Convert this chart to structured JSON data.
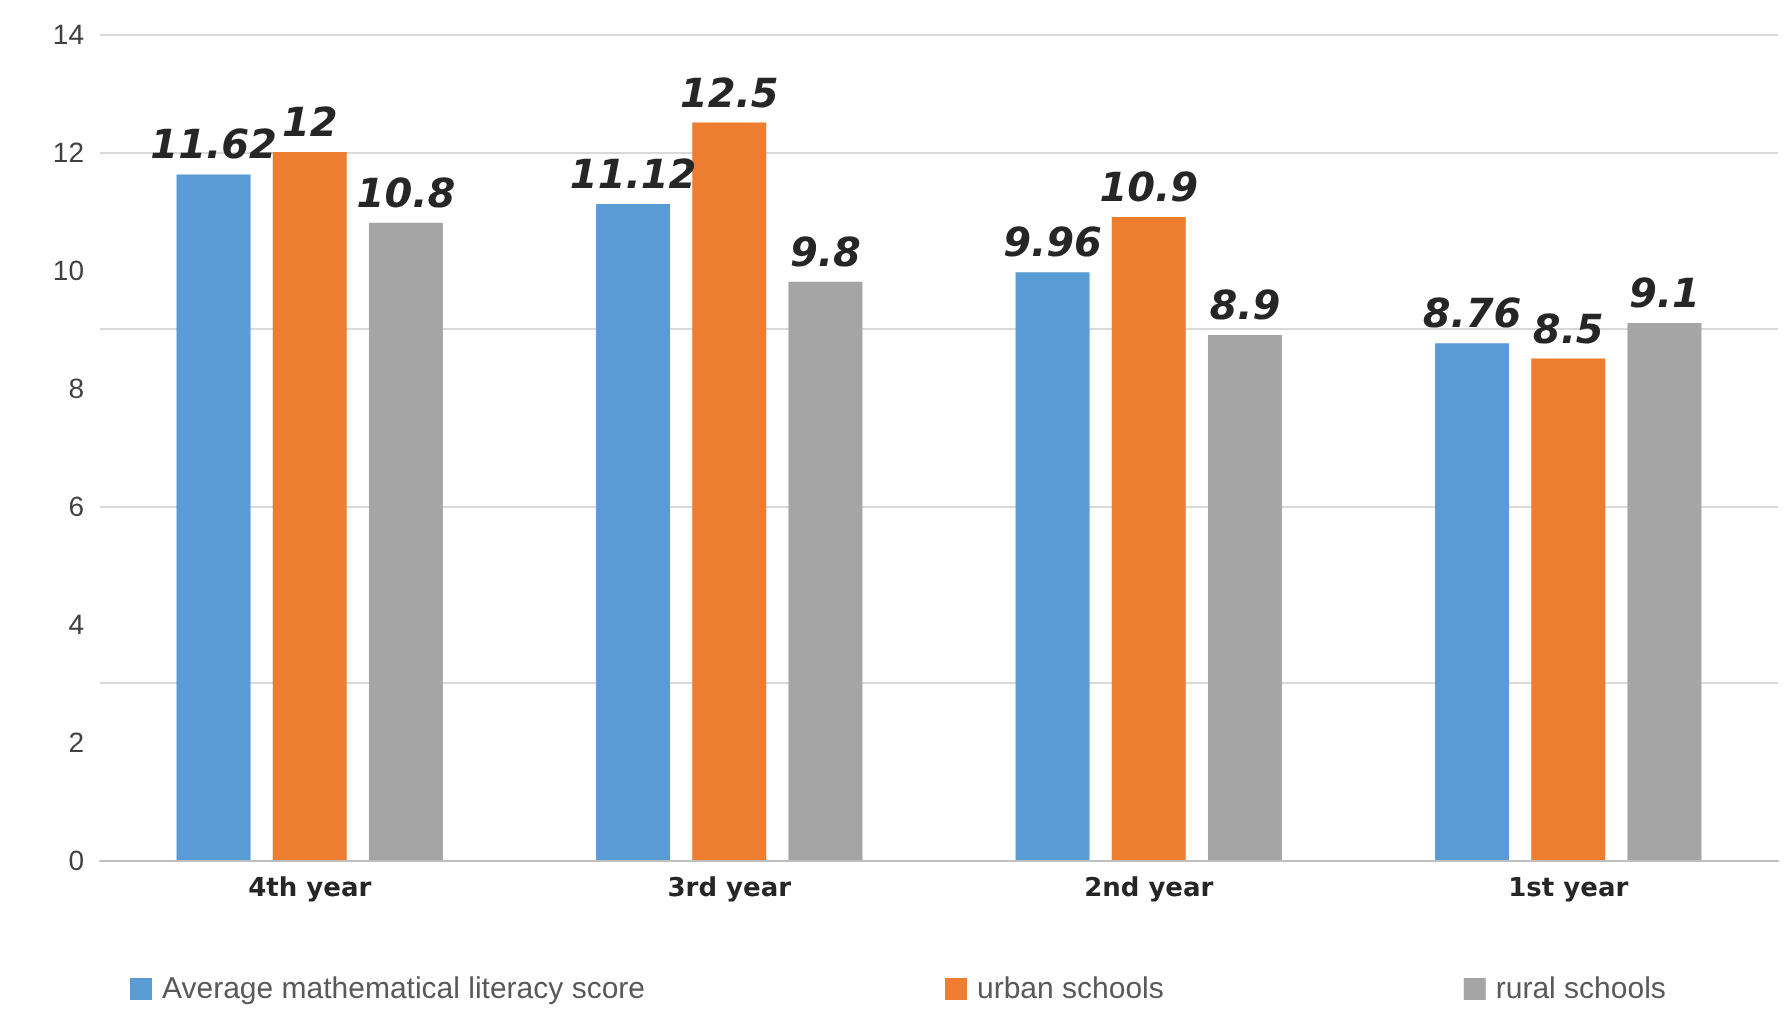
{
  "chart_data": {
    "type": "bar",
    "categories": [
      "4th year",
      "3rd year",
      "2nd year",
      "1st year"
    ],
    "series": [
      {
        "name": "Average mathematical literacy score",
        "color": "#5b9bd5",
        "values": [
          11.62,
          11.12,
          9.96,
          8.76
        ]
      },
      {
        "name": "urban schools",
        "color": "#ed7d31",
        "values": [
          12,
          12.5,
          10.9,
          8.5
        ]
      },
      {
        "name": "rural schools",
        "color": "#a5a5a5",
        "values": [
          10.8,
          9.8,
          8.9,
          9.1
        ]
      }
    ],
    "ylim": [
      0,
      14
    ],
    "yticks": [
      0,
      2,
      4,
      6,
      8,
      10,
      12,
      14
    ],
    "grid": "y",
    "legend": "bottom",
    "data_labels": true
  }
}
